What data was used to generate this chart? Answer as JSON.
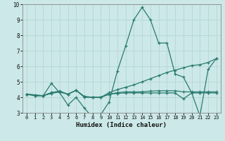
{
  "xlabel": "Humidex (Indice chaleur)",
  "xlim": [
    -0.5,
    23.5
  ],
  "ylim": [
    3,
    10
  ],
  "xticks": [
    0,
    1,
    2,
    3,
    4,
    5,
    6,
    7,
    8,
    9,
    10,
    11,
    12,
    13,
    14,
    15,
    16,
    17,
    18,
    19,
    20,
    21,
    22,
    23
  ],
  "yticks": [
    3,
    4,
    5,
    6,
    7,
    8,
    9,
    10
  ],
  "bg_color": "#cce8e8",
  "grid_color": "#b8d8d8",
  "line_color": "#2a7b6f",
  "lines": [
    {
      "x": [
        0,
        1,
        2,
        3,
        4,
        5,
        6,
        7,
        8,
        9,
        10,
        11,
        12,
        13,
        14,
        15,
        16,
        17,
        18,
        19,
        20,
        21,
        22,
        23
      ],
      "y": [
        4.2,
        4.1,
        4.1,
        4.9,
        4.3,
        3.5,
        4.0,
        3.3,
        2.7,
        2.9,
        3.7,
        5.7,
        7.3,
        9.0,
        9.8,
        9.0,
        7.5,
        7.5,
        5.5,
        5.3,
        4.3,
        2.8,
        5.8,
        6.5
      ]
    },
    {
      "x": [
        0,
        1,
        2,
        3,
        4,
        5,
        6,
        7,
        8,
        9,
        10,
        11,
        12,
        13,
        14,
        15,
        16,
        17,
        18,
        19,
        20,
        21,
        22,
        23
      ],
      "y": [
        4.2,
        4.1,
        4.1,
        4.3,
        4.35,
        4.2,
        4.45,
        4.0,
        4.0,
        4.0,
        4.3,
        4.5,
        4.65,
        4.8,
        5.0,
        5.2,
        5.4,
        5.6,
        5.75,
        5.9,
        6.05,
        6.1,
        6.25,
        6.5
      ]
    },
    {
      "x": [
        0,
        1,
        2,
        3,
        4,
        5,
        6,
        7,
        8,
        9,
        10,
        11,
        12,
        13,
        14,
        15,
        16,
        17,
        18,
        19,
        20,
        21,
        22,
        23
      ],
      "y": [
        4.2,
        4.15,
        4.1,
        4.3,
        4.4,
        4.2,
        4.45,
        4.05,
        4.0,
        4.0,
        4.2,
        4.3,
        4.35,
        4.35,
        4.35,
        4.4,
        4.42,
        4.42,
        4.42,
        4.35,
        4.35,
        4.35,
        4.35,
        4.35
      ]
    },
    {
      "x": [
        0,
        1,
        2,
        3,
        4,
        5,
        6,
        7,
        8,
        9,
        10,
        11,
        12,
        13,
        14,
        15,
        16,
        17,
        18,
        19,
        20,
        21,
        22,
        23
      ],
      "y": [
        4.2,
        4.15,
        4.1,
        4.25,
        4.35,
        4.2,
        4.45,
        4.05,
        4.0,
        4.0,
        4.2,
        4.25,
        4.28,
        4.28,
        4.28,
        4.28,
        4.28,
        4.28,
        4.28,
        3.9,
        4.28,
        4.28,
        4.28,
        4.28
      ]
    }
  ]
}
